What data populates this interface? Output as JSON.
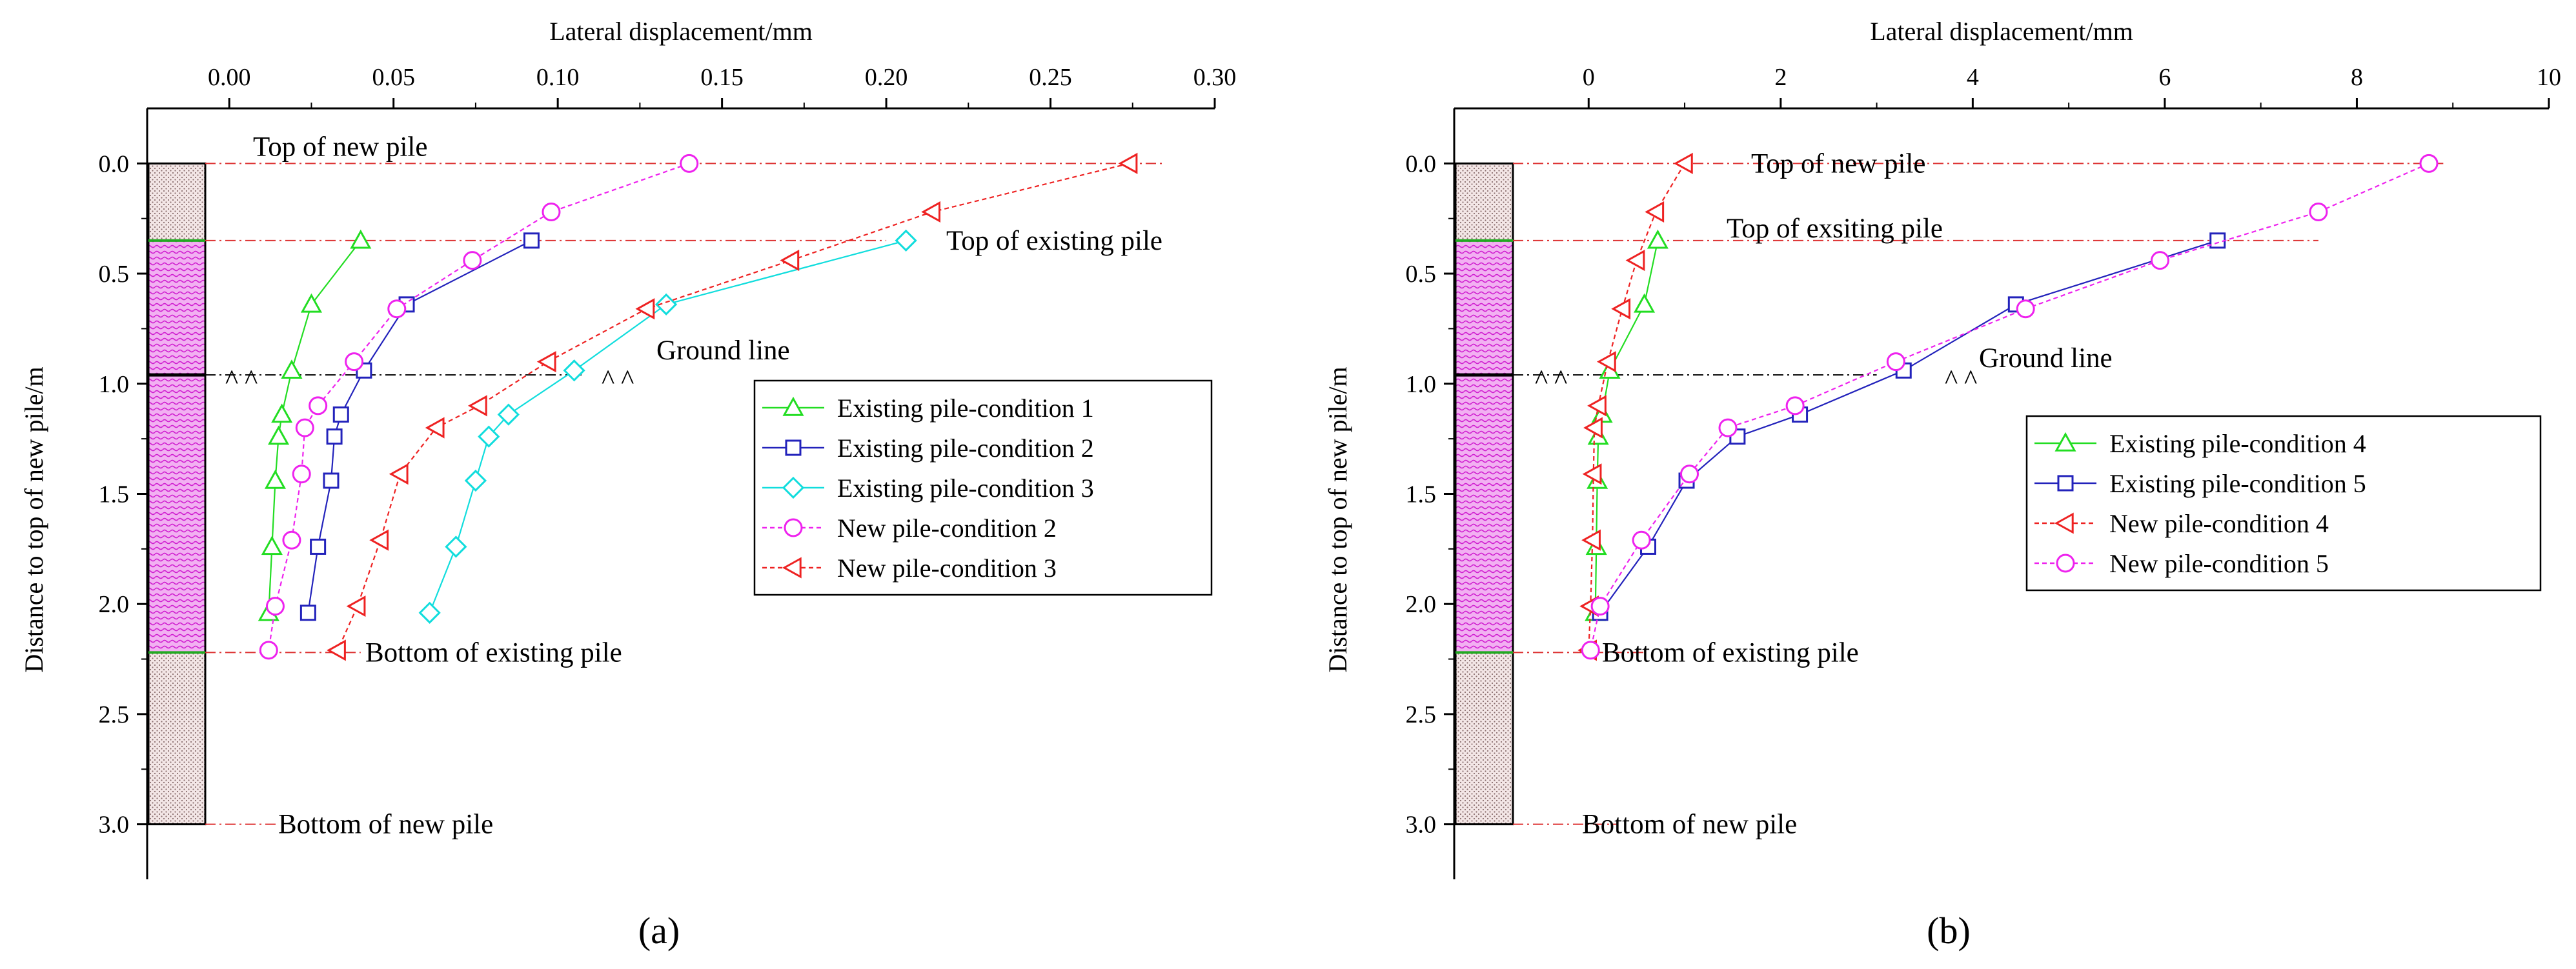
{
  "colors": {
    "green": "#22dd22",
    "blue": "#2222bb",
    "cyan": "#11dddd",
    "magenta": "#ee22ee",
    "red": "#ee2222",
    "annotation_line": "#dd3333",
    "pile_fill": "#e8d2d2",
    "soil_fill": "#f0a8f0"
  },
  "chart_data": [
    {
      "type": "line",
      "panel_label": "(a)",
      "xlabel": "Lateral displacement/mm",
      "ylabel": "Distance to top of new pile/m",
      "xlim": [
        -0.025,
        0.3
      ],
      "ylim": [
        3.25,
        -0.25
      ],
      "x_axis_position": "top",
      "x_ticks": [
        0.0,
        0.05,
        0.1,
        0.15,
        0.2,
        0.25,
        0.3
      ],
      "x_tick_labels": [
        "0.00",
        "0.05",
        "0.10",
        "0.15",
        "0.20",
        "0.25",
        "0.30"
      ],
      "y_ticks": [
        0.0,
        0.5,
        1.0,
        1.5,
        2.0,
        2.5,
        3.0
      ],
      "y_tick_labels": [
        "0.0",
        "0.5",
        "1.0",
        "1.5",
        "2.0",
        "2.5",
        "3.0"
      ],
      "legend_position": "right",
      "series": [
        {
          "name": "Existing pile-condition 1",
          "color": "green",
          "marker": "triangle-up",
          "dash": "solid",
          "x": [
            0.04,
            0.025,
            0.019,
            0.016,
            0.015,
            0.014,
            0.013,
            0.012
          ],
          "y": [
            0.35,
            0.64,
            0.94,
            1.14,
            1.24,
            1.44,
            1.74,
            2.04
          ]
        },
        {
          "name": "Existing pile-condition 2",
          "color": "blue",
          "marker": "square",
          "dash": "solid",
          "x": [
            0.092,
            0.054,
            0.041,
            0.034,
            0.032,
            0.031,
            0.027,
            0.024
          ],
          "y": [
            0.35,
            0.64,
            0.94,
            1.14,
            1.24,
            1.44,
            1.74,
            2.04
          ]
        },
        {
          "name": "Existing pile-condition 3",
          "color": "cyan",
          "marker": "diamond",
          "dash": "solid",
          "x": [
            0.206,
            0.133,
            0.105,
            0.085,
            0.079,
            0.075,
            0.069,
            0.061
          ],
          "y": [
            0.35,
            0.64,
            0.94,
            1.14,
            1.24,
            1.44,
            1.74,
            2.04
          ]
        },
        {
          "name": "New pile-condition 2",
          "color": "magenta",
          "marker": "circle",
          "dash": "dashed",
          "x": [
            0.14,
            0.098,
            0.074,
            0.051,
            0.038,
            0.027,
            0.023,
            0.022,
            0.019,
            0.014,
            0.012
          ],
          "y": [
            0.0,
            0.22,
            0.44,
            0.66,
            0.9,
            1.1,
            1.2,
            1.41,
            1.71,
            2.01,
            2.21
          ]
        },
        {
          "name": "New pile-condition 3",
          "color": "red",
          "marker": "triangle-left",
          "dash": "dashed",
          "x": [
            0.274,
            0.214,
            0.171,
            0.127,
            0.097,
            0.076,
            0.063,
            0.052,
            0.046,
            0.039,
            0.033
          ],
          "y": [
            0.0,
            0.22,
            0.44,
            0.66,
            0.9,
            1.1,
            1.2,
            1.41,
            1.71,
            2.01,
            2.21
          ]
        }
      ],
      "reference_lines": {
        "top_of_new_pile": {
          "y": 0.0,
          "label": "Top of new pile",
          "x_end": 0.285
        },
        "top_of_existing_pile": {
          "y": 0.35,
          "label": "Top of existing pile",
          "x_end": 0.2
        },
        "ground_line": {
          "y": 0.96,
          "label": "Ground line",
          "x_end": 0.108
        },
        "bottom_of_existing_pile": {
          "y": 2.22,
          "label": "Bottom of existing pile",
          "x_end": 0.04
        },
        "bottom_of_new_pile": {
          "y": 3.0,
          "label": "Bottom of new pile",
          "x_end": 0.015
        }
      },
      "ground_symbol": "^^"
    },
    {
      "type": "line",
      "panel_label": "(b)",
      "xlabel": "Lateral displacement/mm",
      "ylabel": "Distance to top of new pile/m",
      "xlim": [
        -1.4,
        10.0
      ],
      "ylim": [
        3.25,
        -0.25
      ],
      "x_axis_position": "top",
      "x_ticks": [
        0,
        2,
        4,
        6,
        8,
        10
      ],
      "x_tick_labels": [
        "0",
        "2",
        "4",
        "6",
        "8",
        "10"
      ],
      "y_ticks": [
        0.0,
        0.5,
        1.0,
        1.5,
        2.0,
        2.5,
        3.0
      ],
      "y_tick_labels": [
        "0.0",
        "0.5",
        "1.0",
        "1.5",
        "2.0",
        "2.5",
        "3.0"
      ],
      "legend_position": "right",
      "series": [
        {
          "name": "Existing pile-condition 4",
          "color": "green",
          "marker": "triangle-up",
          "dash": "solid",
          "x": [
            0.72,
            0.58,
            0.22,
            0.14,
            0.1,
            0.09,
            0.08,
            0.07
          ],
          "y": [
            0.35,
            0.64,
            0.94,
            1.14,
            1.24,
            1.44,
            1.74,
            2.04
          ]
        },
        {
          "name": "Existing pile-condition 5",
          "color": "blue",
          "marker": "square",
          "dash": "solid",
          "x": [
            6.55,
            4.45,
            3.28,
            2.2,
            1.55,
            1.02,
            0.62,
            0.12
          ],
          "y": [
            0.35,
            0.64,
            0.94,
            1.14,
            1.24,
            1.44,
            1.74,
            2.04
          ]
        },
        {
          "name": "New pile-condition 4",
          "color": "red",
          "marker": "triangle-left",
          "dash": "dashed",
          "x": [
            1.0,
            0.7,
            0.5,
            0.35,
            0.2,
            0.1,
            0.06,
            0.05,
            0.04,
            0.02,
            0.0
          ],
          "y": [
            0.0,
            0.22,
            0.44,
            0.66,
            0.9,
            1.1,
            1.2,
            1.41,
            1.71,
            2.01,
            2.21
          ]
        },
        {
          "name": "New pile-condition 5",
          "color": "magenta",
          "marker": "circle",
          "dash": "dashed",
          "x": [
            8.75,
            7.6,
            5.95,
            4.55,
            3.2,
            2.15,
            1.45,
            1.05,
            0.55,
            0.12,
            0.02
          ],
          "y": [
            0.0,
            0.22,
            0.44,
            0.66,
            0.9,
            1.1,
            1.2,
            1.41,
            1.71,
            2.01,
            2.21
          ]
        }
      ],
      "reference_lines": {
        "top_of_new_pile": {
          "y": 0.0,
          "label": "Top of new pile",
          "x_end": 8.9
        },
        "top_of_existing_pile": {
          "y": 0.35,
          "label": "Top of exsiting pile",
          "x_end": 7.6
        },
        "ground_line": {
          "y": 0.96,
          "label": "Ground line",
          "x_end": 3.0
        },
        "bottom_of_existing_pile": {
          "y": 2.22,
          "label": "Bottom of existing pile",
          "x_end": 0.6
        },
        "bottom_of_new_pile": {
          "y": 3.0,
          "label": "Bottom of new pile",
          "x_end": 0.3
        }
      },
      "ground_symbol": "^^"
    }
  ]
}
